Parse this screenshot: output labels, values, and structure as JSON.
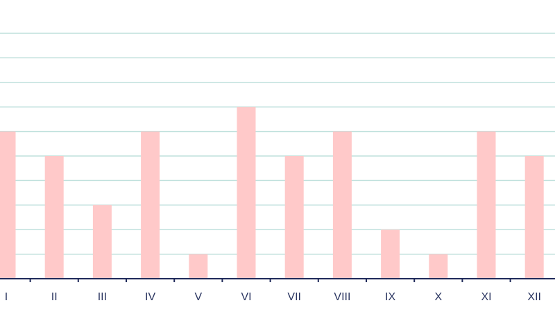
{
  "chart_data": {
    "type": "bar",
    "categories": [
      "I",
      "II",
      "III",
      "IV",
      "V",
      "VI",
      "VII",
      "VIII",
      "IX",
      "X",
      "XI",
      "XII"
    ],
    "values": [
      6,
      5,
      3,
      6,
      1,
      7,
      5,
      6,
      2,
      1,
      6,
      5
    ],
    "ylim": [
      0,
      10
    ],
    "grid": true,
    "colors": {
      "bar": "#ffc9c9",
      "grid": "#bfe0dc",
      "axis": "#1f2a5a",
      "label": "#2a3560"
    }
  }
}
